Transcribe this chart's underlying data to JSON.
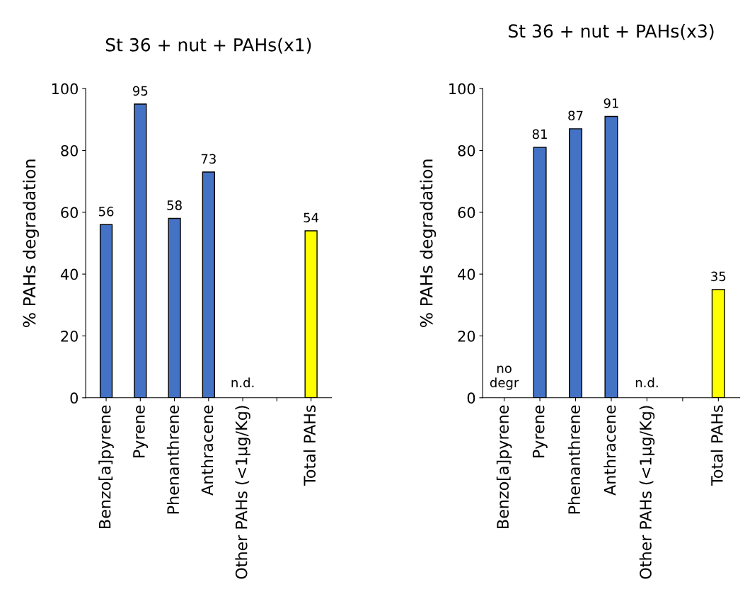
{
  "chart_data": [
    {
      "type": "bar",
      "title": "St 36 + nut + PAHs(x1)",
      "ylabel": "% PAHs degradation",
      "categories": [
        "Benzo[a]pyrene",
        "Pyrene",
        "Phenanthrene",
        "Anthracene",
        "Other PAHs (<1µg/Kg)",
        null,
        "Total PAHs"
      ],
      "values": [
        56,
        95,
        58,
        73,
        null,
        null,
        54
      ],
      "colors": [
        "#4472c4",
        "#4472c4",
        "#4472c4",
        "#4472c4",
        "#4472c4",
        "#4472c4",
        "#ffff00"
      ],
      "ylim": [
        0,
        100
      ],
      "yticks": [
        0,
        20,
        40,
        60,
        80,
        100
      ],
      "grid": false,
      "data_labels": true,
      "annotations": [
        "n.d."
      ]
    },
    {
      "type": "bar",
      "title": "St 36 + nut + PAHs(x3)",
      "ylabel": "% PAHs degradation",
      "categories": [
        "Benzo[a]pyrene",
        "Pyrene",
        "Phenanthrene",
        "Anthracene",
        "Other PAHs (<1µg/Kg)",
        null,
        "Total PAHs"
      ],
      "values": [
        null,
        81,
        87,
        91,
        null,
        null,
        35
      ],
      "colors": [
        "#4472c4",
        "#4472c4",
        "#4472c4",
        "#4472c4",
        "#4472c4",
        "#4472c4",
        "#ffff00"
      ],
      "ylim": [
        0,
        100
      ],
      "yticks": [
        0,
        20,
        40,
        60,
        80,
        100
      ],
      "grid": false,
      "data_labels": true,
      "annotations": [
        "no\ndegr",
        "n.d."
      ]
    }
  ]
}
